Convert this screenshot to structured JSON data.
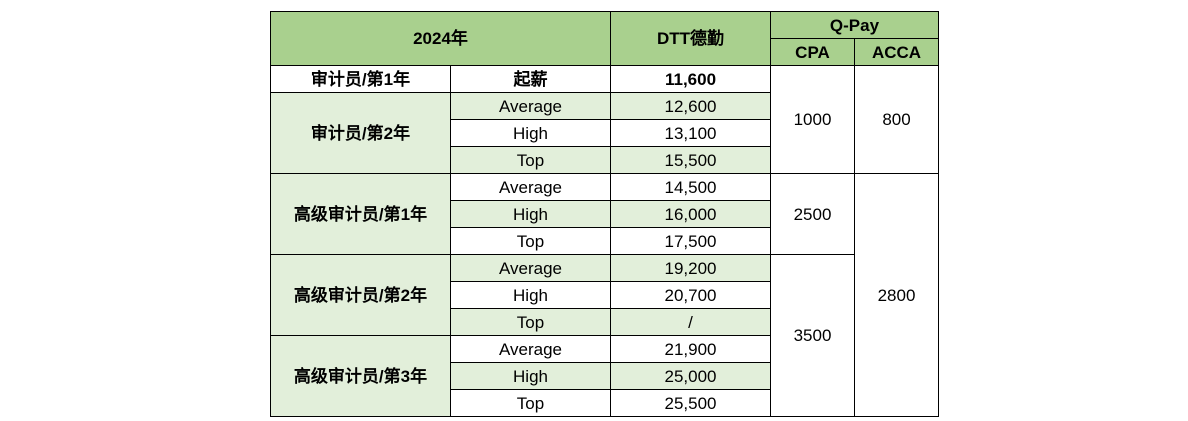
{
  "header": {
    "year": "2024年",
    "firm": "DTT德勤",
    "qpay": "Q-Pay",
    "cpa": "CPA",
    "acca": "ACCA"
  },
  "rows": {
    "r1": {
      "level": "审计员/第1年",
      "tier": "起薪",
      "salary": "11,600"
    },
    "r2": {
      "level": "审计员/第2年",
      "average": "12,600",
      "high": "13,100",
      "top": "15,500"
    },
    "r3": {
      "level": "高级审计员/第1年",
      "average": "14,500",
      "high": "16,000",
      "top": "17,500"
    },
    "r4": {
      "level": "高级审计员/第2年",
      "average": "19,200",
      "high": "20,700",
      "top": "/"
    },
    "r5": {
      "level": "高级审计员/第3年",
      "average": "21,900",
      "high": "25,000",
      "top": "25,500"
    }
  },
  "tiers": {
    "average": "Average",
    "high": "High",
    "top": "Top"
  },
  "qpay_values": {
    "cpa_auditor": "1000",
    "acca_auditor": "800",
    "cpa_senior_1": "2500",
    "cpa_senior_2_3": "3500",
    "acca_senior": "2800"
  }
}
